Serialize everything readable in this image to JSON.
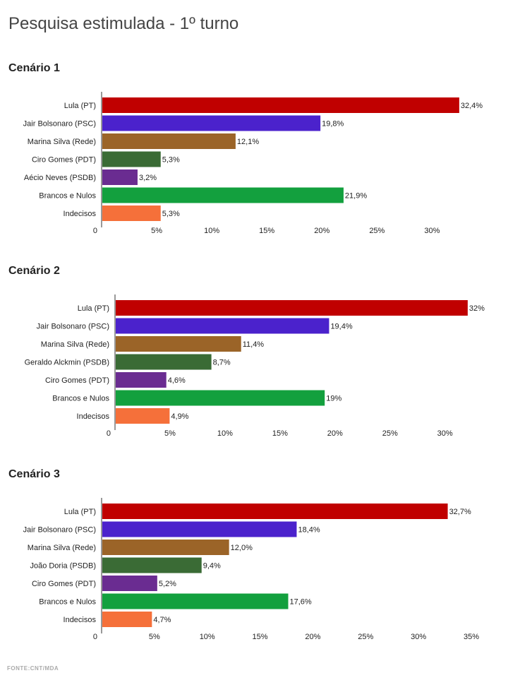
{
  "title": "Pesquisa estimulada - 1º turno",
  "source": "FONTE:CNT/MDA",
  "chart_data": [
    {
      "type": "bar",
      "orientation": "horizontal",
      "title": "Cenário 1",
      "categories": [
        "Lula (PT)",
        "Jair Bolsonaro (PSC)",
        "Marina Silva (Rede)",
        "Ciro Gomes (PDT)",
        "Aécio Neves (PSDB)",
        "Brancos e Nulos",
        "Indecisos"
      ],
      "values": [
        32.4,
        19.8,
        12.1,
        5.3,
        3.2,
        21.9,
        5.3
      ],
      "value_labels": [
        "32,4%",
        "19,8%",
        "12,1%",
        "5,3%",
        "3,2%",
        "21,9%",
        "5,3%"
      ],
      "colors": [
        "#c00000",
        "#4b22cc",
        "#9b6428",
        "#3a6b35",
        "#6a2c91",
        "#13a03e",
        "#f5703a"
      ],
      "ticks": [
        0,
        5,
        10,
        15,
        20,
        25,
        30
      ],
      "tick_labels": [
        "0",
        "5%",
        "10%",
        "15%",
        "20%",
        "25%",
        "30%"
      ],
      "xlim": [
        0,
        32.6
      ]
    },
    {
      "type": "bar",
      "orientation": "horizontal",
      "title": "Cenário 2",
      "categories": [
        "Lula (PT)",
        "Jair Bolsonaro (PSC)",
        "Marina Silva (Rede)",
        "Geraldo Alckmin (PSDB)",
        "Ciro Gomes (PDT)",
        "Brancos e Nulos",
        "Indecisos"
      ],
      "values": [
        32,
        19.4,
        11.4,
        8.7,
        4.6,
        19,
        4.9
      ],
      "value_labels": [
        "32%",
        "19,4%",
        "11,4%",
        "8,7%",
        "4,6%",
        "19%",
        "4,9%"
      ],
      "colors": [
        "#c00000",
        "#4b22cc",
        "#9b6428",
        "#3a6b35",
        "#6a2c91",
        "#13a03e",
        "#f5703a"
      ],
      "ticks": [
        0,
        5,
        10,
        15,
        20,
        25,
        30
      ],
      "tick_labels": [
        "0",
        "5%",
        "10%",
        "15%",
        "20%",
        "25%",
        "30%"
      ],
      "xlim": [
        0,
        32.2
      ]
    },
    {
      "type": "bar",
      "orientation": "horizontal",
      "title": "Cenário 3",
      "categories": [
        "Lula (PT)",
        "Jair Bolsonaro (PSC)",
        "Marina Silva (Rede)",
        "João Doria (PSDB)",
        "Ciro Gomes (PDT)",
        "Brancos e Nulos",
        "Indecisos"
      ],
      "values": [
        32.7,
        18.4,
        12.0,
        9.4,
        5.2,
        17.6,
        4.7
      ],
      "value_labels": [
        "32,7%",
        "18,4%",
        "12,0%",
        "9,4%",
        "5,2%",
        "17,6%",
        "4,7%"
      ],
      "colors": [
        "#c00000",
        "#4b22cc",
        "#9b6428",
        "#3a6b35",
        "#6a2c91",
        "#13a03e",
        "#f5703a"
      ],
      "ticks": [
        0,
        5,
        10,
        15,
        20,
        25,
        30,
        35
      ],
      "tick_labels": [
        "0",
        "5%",
        "10%",
        "15%",
        "20%",
        "25%",
        "30%",
        "35%"
      ],
      "xlim": [
        0,
        35
      ]
    }
  ]
}
